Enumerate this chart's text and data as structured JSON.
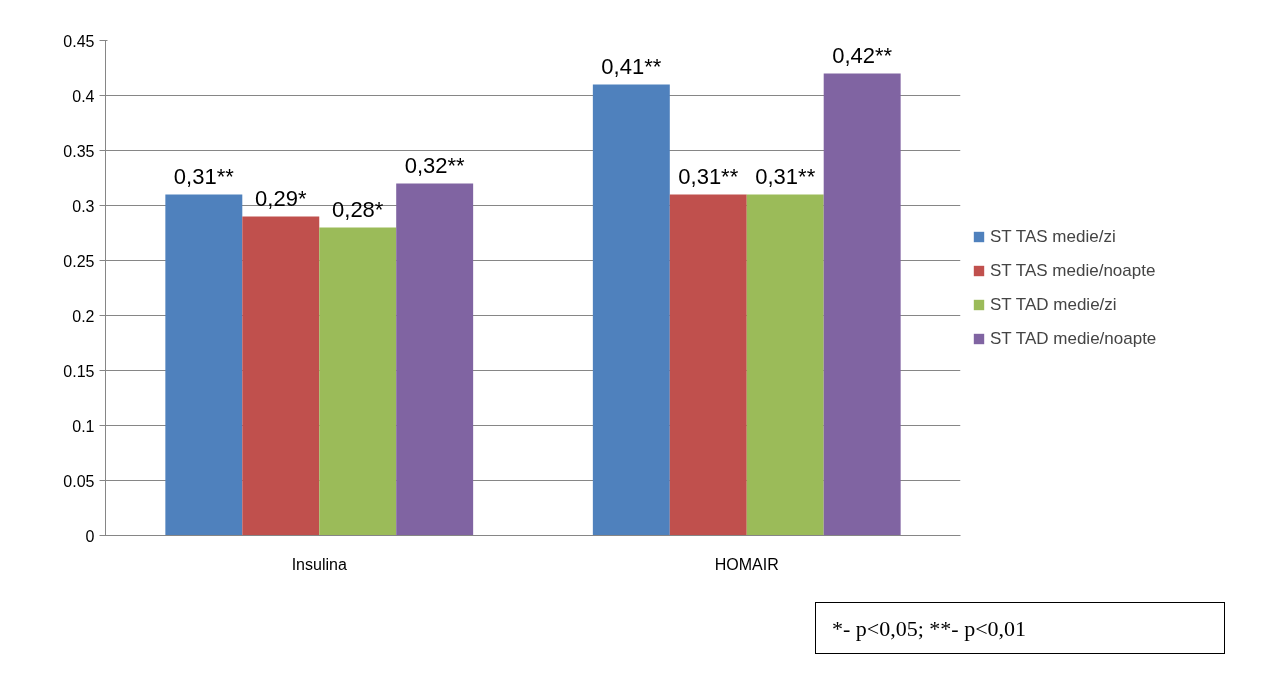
{
  "chart_data": {
    "type": "bar",
    "categories": [
      "Insulina",
      "HOMAIR"
    ],
    "series": [
      {
        "name": "ST TAS medie/zi",
        "color": "#4f81bd",
        "values": [
          0.31,
          0.41
        ],
        "value_labels": [
          "0,31**",
          "0,41**"
        ]
      },
      {
        "name": "ST TAS medie/noapte",
        "color": "#c0504d",
        "values": [
          0.29,
          0.31
        ],
        "value_labels": [
          "0,29*",
          "0,31**"
        ]
      },
      {
        "name": "ST TAD medie/zi",
        "color": "#9bbb59",
        "values": [
          0.28,
          0.31
        ],
        "value_labels": [
          "0,28*",
          "0,31**"
        ]
      },
      {
        "name": "ST TAD medie/noapte",
        "color": "#8064a2",
        "values": [
          0.32,
          0.42
        ],
        "value_labels": [
          "0,32**",
          "0,42**"
        ]
      }
    ],
    "ylim": [
      0,
      0.45
    ],
    "yticks": [
      0,
      0.05,
      0.1,
      0.15,
      0.2,
      0.25,
      0.3,
      0.35,
      0.4,
      0.45
    ],
    "grid": "y",
    "legend": "right",
    "annotations": [
      "*- p<0,05; **- p<0,01"
    ]
  }
}
